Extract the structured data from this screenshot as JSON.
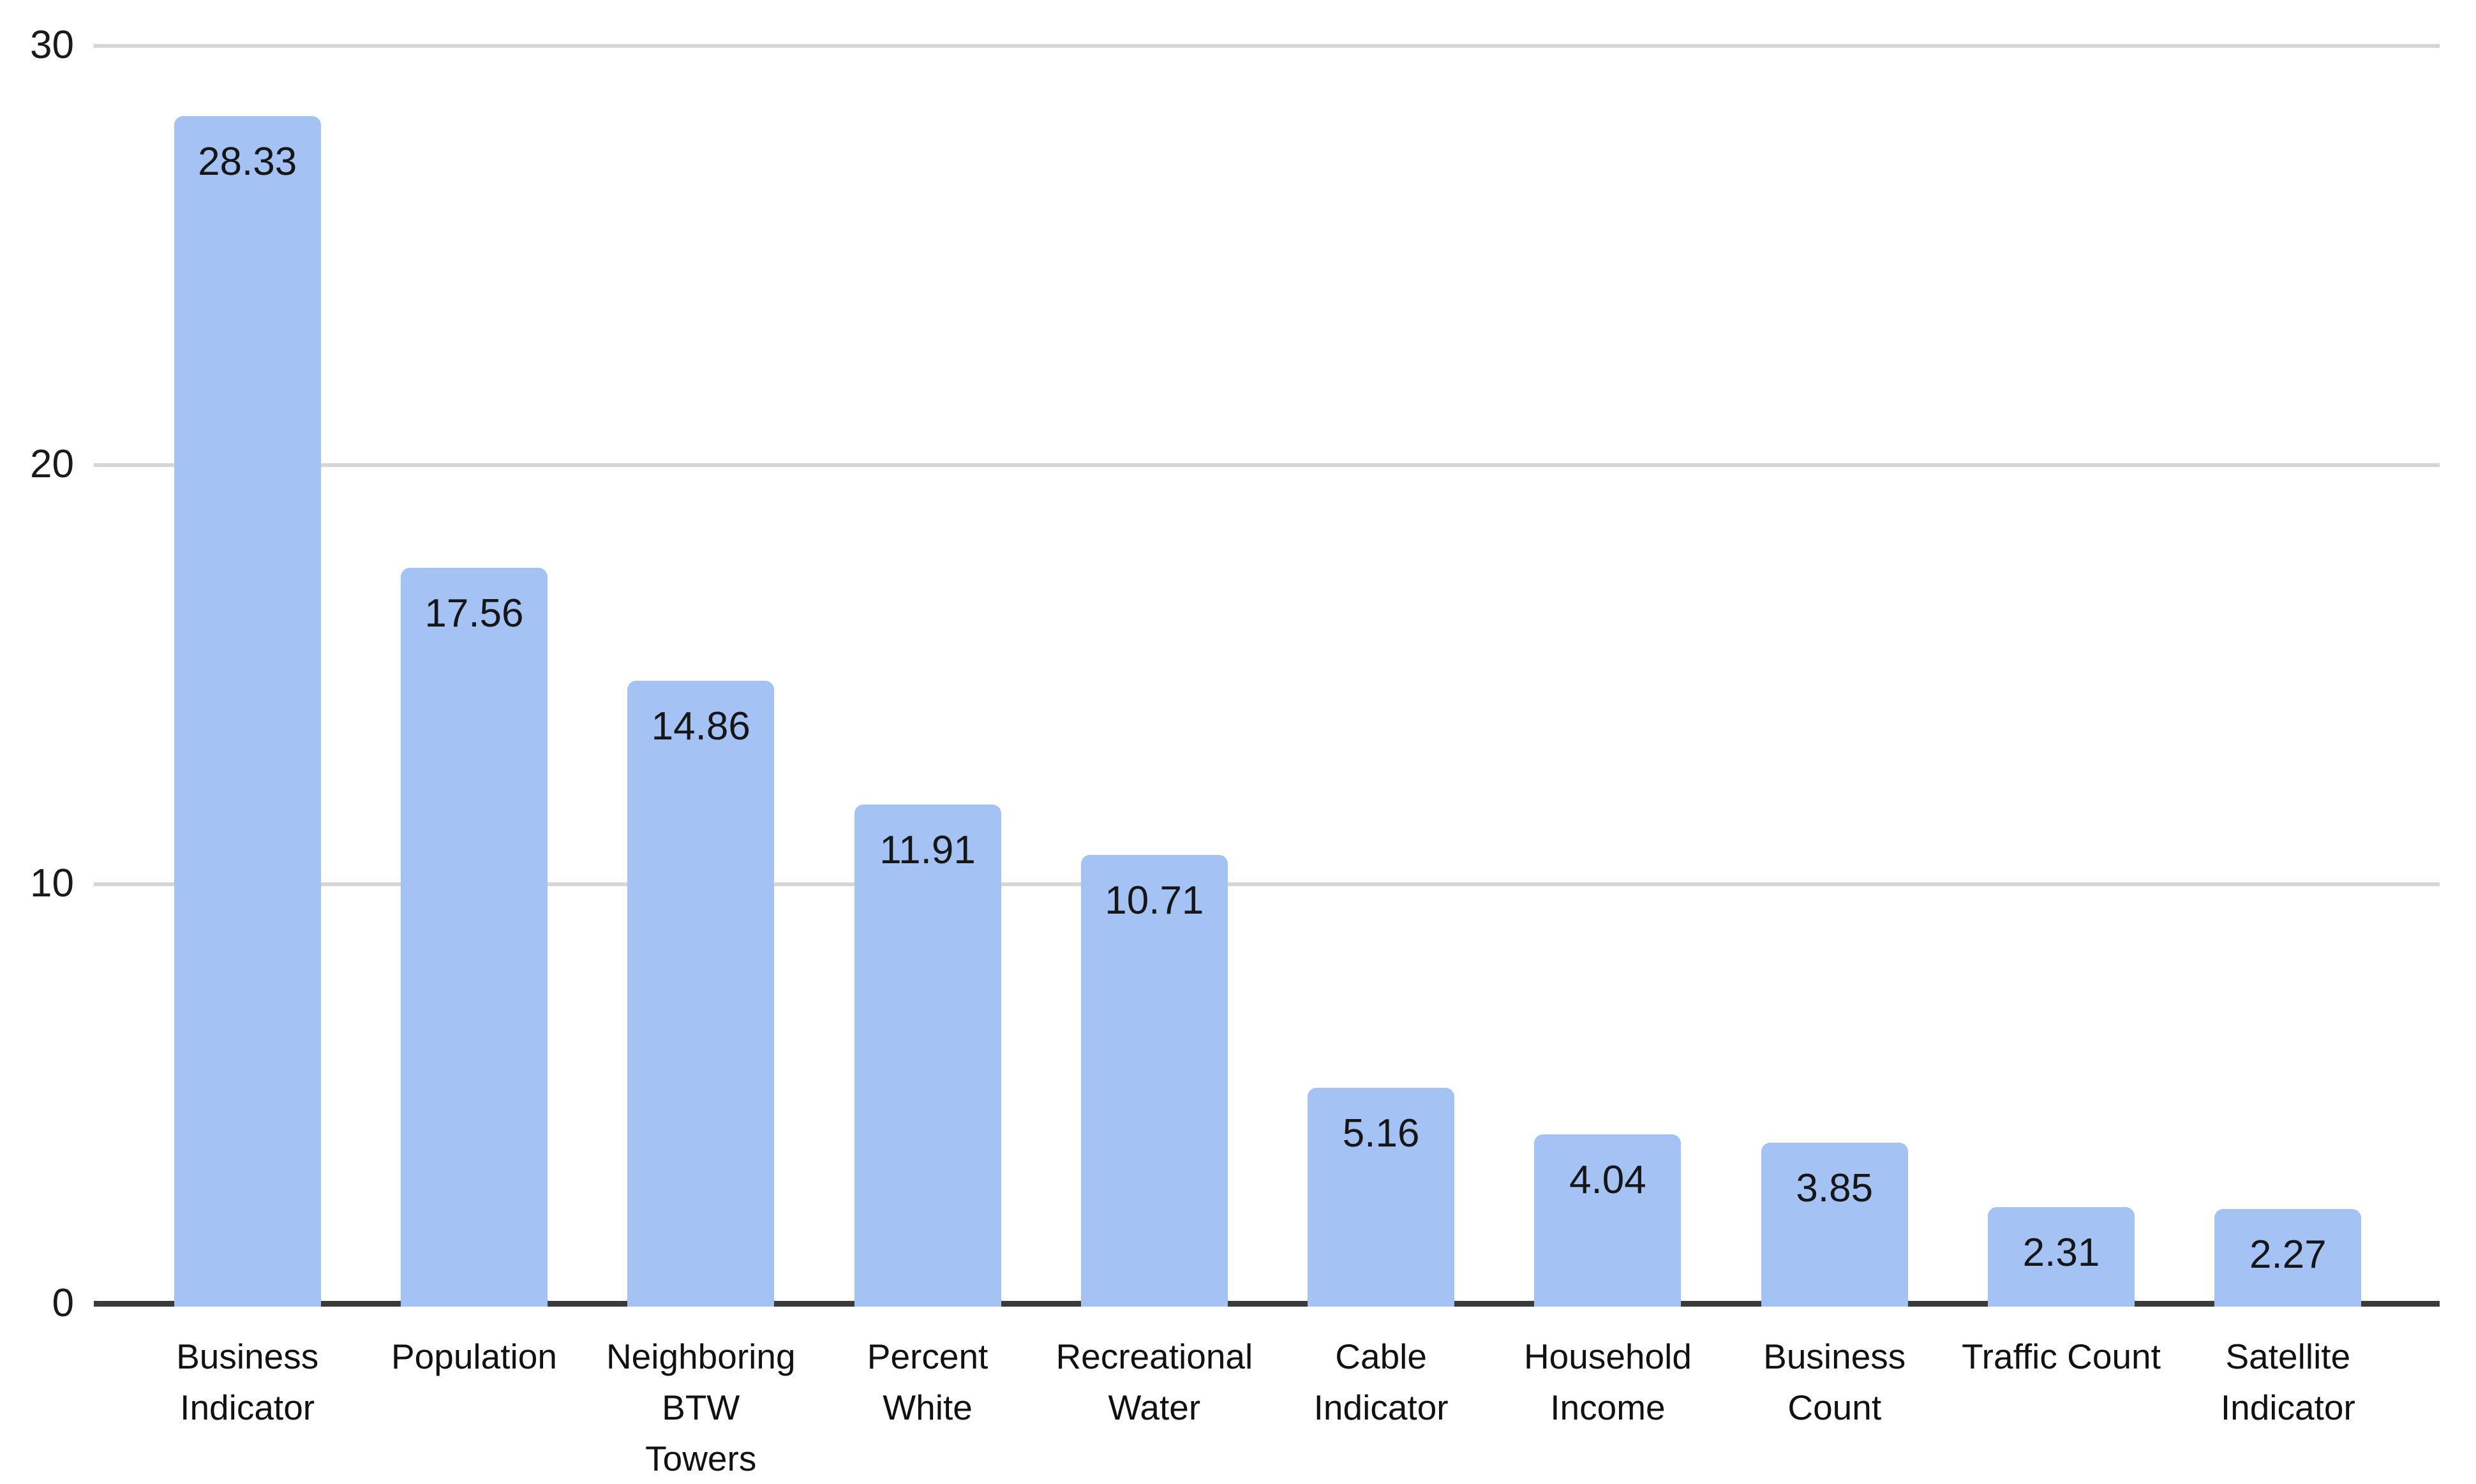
{
  "chart_data": {
    "type": "bar",
    "title": "",
    "xlabel": "",
    "ylabel": "",
    "ylim": [
      0,
      30
    ],
    "yticks": [
      0,
      10,
      20,
      30
    ],
    "ytick_labels": [
      "0",
      "10",
      "20",
      "30"
    ],
    "grid": true,
    "legend": false,
    "categories": [
      "Business Indicator",
      "Population",
      "Neighboring BTW Towers",
      "Percent White",
      "Recreational Water",
      "Cable Indicator",
      "Household Income",
      "Business Count",
      "Traffic Count",
      "Satellite Indicator"
    ],
    "category_lines": [
      [
        "Business",
        "Indicator"
      ],
      [
        "Population"
      ],
      [
        "Neighboring",
        "BTW",
        "Towers"
      ],
      [
        "Percent",
        "White"
      ],
      [
        "Recreational",
        "Water"
      ],
      [
        "Cable",
        "Indicator"
      ],
      [
        "Household",
        "Income"
      ],
      [
        "Business",
        "Count"
      ],
      [
        "Traffic Count"
      ],
      [
        "Satellite",
        "Indicator"
      ]
    ],
    "values": [
      28.33,
      17.56,
      14.86,
      11.91,
      10.71,
      5.16,
      4.04,
      3.85,
      2.31,
      2.27
    ],
    "value_labels": [
      "28.33",
      "17.56",
      "14.86",
      "11.91",
      "10.71",
      "5.16",
      "4.04",
      "3.85",
      "2.31",
      "2.27"
    ],
    "colors": {
      "bar": "#a4c2f4",
      "gridline": "#d6d6d6",
      "axis": "#3a3a3a",
      "text": "#1a1a1a"
    }
  }
}
